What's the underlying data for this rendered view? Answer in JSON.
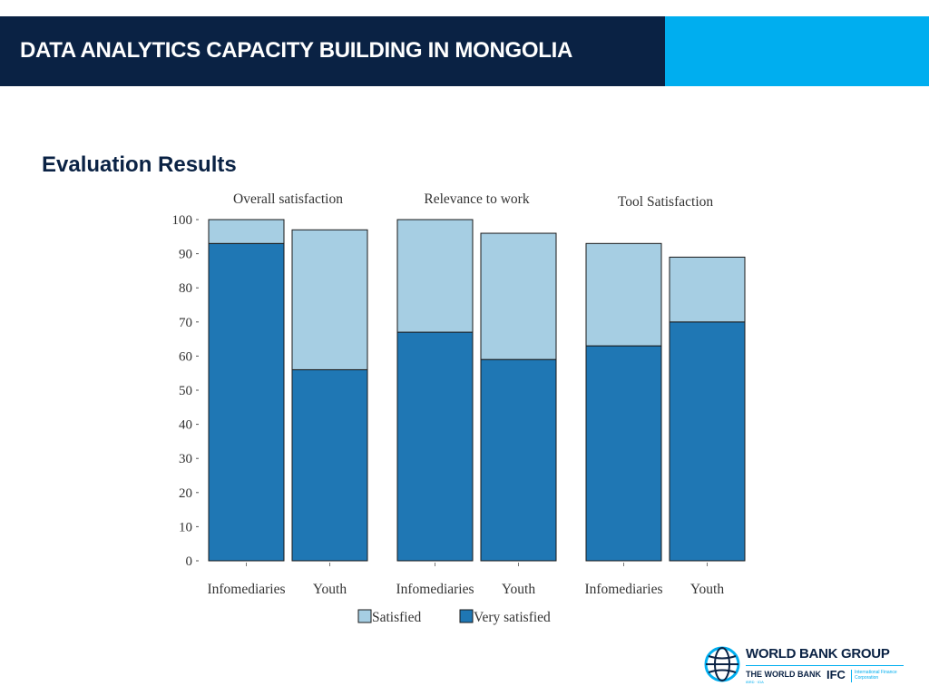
{
  "header": {
    "title": "DATA ANALYTICS CAPACITY BUILDING IN MONGOLIA"
  },
  "section_title": "Evaluation Results",
  "chart_data": {
    "type": "bar",
    "stacked": true,
    "panels": [
      "Overall satisfaction",
      "Relevance to work",
      "Tool Satisfaction"
    ],
    "categories": [
      "Infomediaries",
      "Youth"
    ],
    "series": [
      {
        "name": "Very satisfied",
        "color": "#1f77b4",
        "values": [
          [
            93,
            56
          ],
          [
            67,
            59
          ],
          [
            63,
            70
          ]
        ]
      },
      {
        "name": "Satisfied",
        "color": "#a6cee3",
        "values": [
          [
            7,
            41
          ],
          [
            33,
            37
          ],
          [
            30,
            19
          ]
        ]
      }
    ],
    "ylim": [
      0,
      100
    ],
    "yticks": [
      0,
      10,
      20,
      30,
      40,
      50,
      60,
      70,
      80,
      90,
      100
    ],
    "legend_order": [
      "Satisfied",
      "Very satisfied"
    ],
    "legend_position": "bottom",
    "grid": false
  },
  "logo": {
    "name": "WORLD BANK GROUP",
    "sub1": "THE WORLD BANK",
    "sub1_small": "IBRD · IDA",
    "ifc": "IFC",
    "ifc_name": "International Finance Corporation",
    "icon": "globe-icon"
  }
}
